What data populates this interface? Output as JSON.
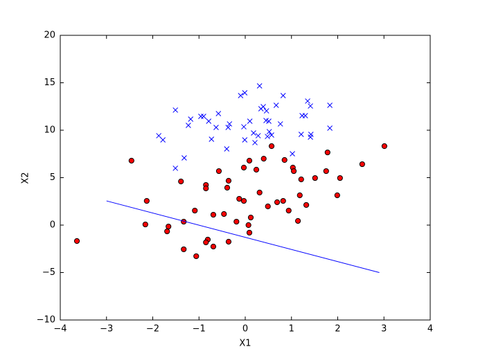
{
  "chart_data": {
    "type": "scatter",
    "x_label": "X1",
    "y_label": "X2",
    "xlim": [
      -4,
      4
    ],
    "ylim": [
      -10,
      20
    ],
    "xticks": [
      {
        "value": -4,
        "label": "−4"
      },
      {
        "value": -3,
        "label": "−3"
      },
      {
        "value": -2,
        "label": "−2"
      },
      {
        "value": -1,
        "label": "−1"
      },
      0,
      1,
      2,
      3,
      4
    ],
    "yticks": [
      {
        "value": -10,
        "label": "−10"
      },
      {
        "value": -5,
        "label": "−5"
      },
      0,
      5,
      10,
      15,
      20
    ],
    "series": [
      {
        "marker": "x",
        "color": "#0000ff",
        "x": [
          -1.51,
          -1.18,
          -1.23,
          -0.96,
          -0.9,
          -0.79,
          -0.58,
          -0.63,
          -0.73,
          -0.34,
          -0.37,
          -0.4,
          -0.1,
          -0.01,
          -0.03,
          -0.01,
          0.1,
          0.18,
          0.21,
          0.28,
          0.31,
          0.34,
          0.39,
          0.46,
          0.45,
          0.51,
          0.48,
          0.52,
          0.57,
          0.67,
          0.76,
          0.82,
          1.02,
          1.23,
          1.3,
          1.21,
          1.35,
          1.41,
          1.41,
          1.42,
          1.83,
          1.83,
          -1.87,
          -1.78,
          -1.32,
          -1.51
        ],
        "values": [
          12.12,
          11.17,
          10.51,
          11.46,
          11.46,
          10.95,
          11.75,
          10.29,
          9.05,
          10.66,
          10.29,
          8.03,
          13.65,
          13.94,
          10.36,
          8.98,
          10.95,
          9.71,
          8.69,
          9.42,
          14.67,
          12.26,
          12.48,
          12.04,
          11.02,
          10.95,
          9.34,
          9.85,
          9.49,
          12.63,
          10.66,
          13.65,
          7.52,
          11.53,
          11.53,
          9.56,
          13.07,
          12.55,
          9.27,
          9.56,
          12.63,
          10.22,
          9.42,
          8.98,
          7.08,
          5.99
        ]
      },
      {
        "marker": "o",
        "color": "#ff0000",
        "x": [
          -3.64,
          -2.46,
          -2.13,
          -2.16,
          -1.66,
          -1.69,
          -1.39,
          -1.33,
          -1.33,
          -1.09,
          -1.06,
          -0.85,
          -0.85,
          -0.81,
          -0.85,
          -0.69,
          -0.69,
          -0.57,
          -0.46,
          -0.39,
          -0.36,
          -0.36,
          -0.19,
          -0.13,
          -0.03,
          -0.03,
          0.09,
          0.12,
          0.07,
          0.09,
          0.24,
          0.31,
          0.4,
          0.49,
          0.57,
          0.69,
          0.82,
          0.85,
          0.94,
          1.03,
          1.05,
          1.14,
          1.18,
          1.21,
          1.32,
          1.51,
          1.75,
          1.78,
          1.99,
          2.05,
          2.53,
          3.01
        ],
        "values": [
          -1.68,
          6.79,
          2.55,
          0.07,
          -0.15,
          -0.66,
          4.6,
          0.36,
          -2.55,
          1.53,
          -3.28,
          4.23,
          3.87,
          -1.53,
          -1.82,
          1.09,
          -2.26,
          5.69,
          1.17,
          3.94,
          4.67,
          -1.75,
          0.36,
          2.77,
          2.55,
          6.06,
          6.79,
          0.8,
          0.0,
          -0.8,
          5.84,
          3.43,
          7.0,
          1.97,
          8.32,
          2.41,
          2.55,
          6.86,
          1.53,
          6.06,
          5.69,
          0.44,
          3.14,
          4.82,
          2.12,
          4.96,
          5.69,
          7.66,
          3.14,
          4.96,
          6.42,
          8.32
        ]
      },
      {
        "marker": "line",
        "color": "#0000ff",
        "x": [
          -3.0,
          2.9
        ],
        "values": [
          2.55,
          -5.0
        ]
      }
    ]
  }
}
